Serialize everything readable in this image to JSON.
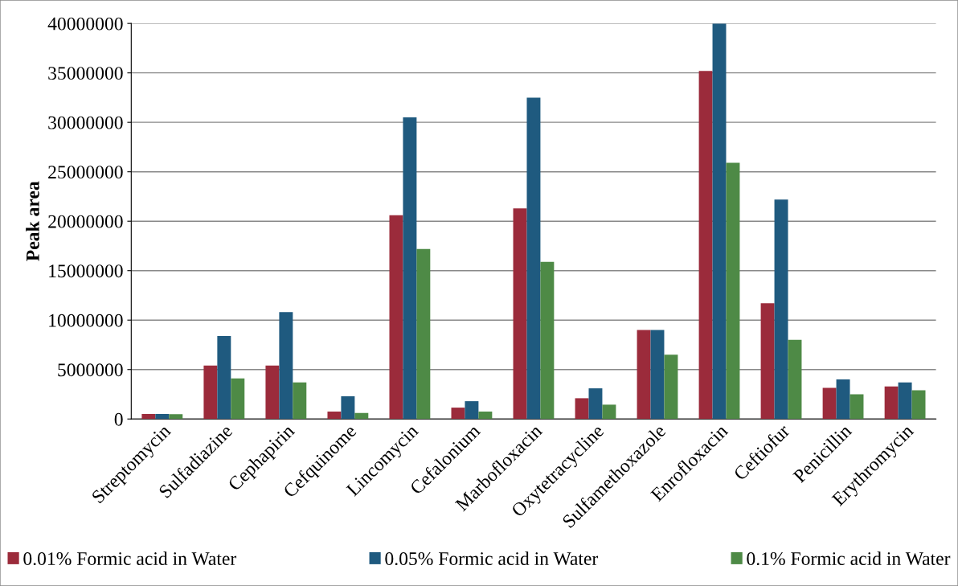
{
  "chart_data": {
    "type": "bar",
    "ylabel": "Peak area",
    "categories": [
      "Streptomycin",
      "Sulfadiazine",
      "Cephapirin",
      "Cefquinome",
      "Lincomycin",
      "Cefalonium",
      "Marbofloxacin",
      "Oxytetracycline",
      "Sulfamethoxazole",
      "Enrofloxacin",
      "Ceftiofur",
      "Penicillin",
      "Erythromycin"
    ],
    "series": [
      {
        "name": "0.01% Formic acid in Water",
        "color": "#9b2b3b",
        "values": [
          500000,
          5400000,
          5400000,
          750000,
          20600000,
          1150000,
          21300000,
          2100000,
          9000000,
          35200000,
          11700000,
          3150000,
          3300000
        ]
      },
      {
        "name": "0.05% Formic acid in Water",
        "color": "#1f5a7f",
        "values": [
          500000,
          8400000,
          10800000,
          2300000,
          30500000,
          1800000,
          32500000,
          3100000,
          9000000,
          40000000,
          22200000,
          4000000,
          3700000
        ]
      },
      {
        "name": "0.1% Formic acid in Water",
        "color": "#4e8a46",
        "values": [
          480000,
          4100000,
          3700000,
          600000,
          17200000,
          750000,
          15900000,
          1450000,
          6500000,
          25900000,
          8000000,
          2500000,
          2900000
        ]
      }
    ],
    "ylim": [
      0,
      40000000
    ],
    "yticks": [
      0,
      5000000,
      10000000,
      15000000,
      20000000,
      25000000,
      30000000,
      35000000,
      40000000
    ],
    "grid": "y",
    "legend": "bottom"
  }
}
